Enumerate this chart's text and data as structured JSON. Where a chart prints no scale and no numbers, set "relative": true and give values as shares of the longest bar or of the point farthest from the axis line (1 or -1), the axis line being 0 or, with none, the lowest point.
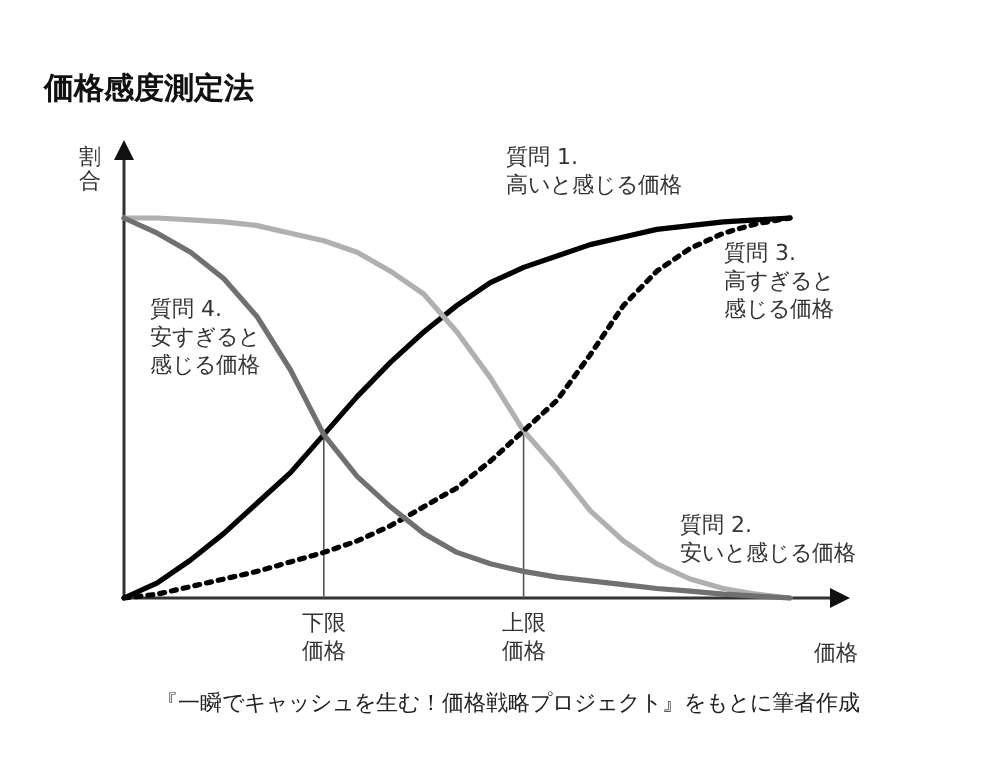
{
  "chart_data": {
    "type": "line",
    "relative": true,
    "title": "価格感度測定法",
    "xlabel": "価格",
    "ylabel": "割合",
    "categories": [
      null,
      null,
      null,
      null,
      null,
      null,
      "下限価格",
      null,
      null,
      null,
      null,
      null,
      "上限価格",
      null,
      null,
      null,
      null,
      null,
      null,
      null,
      null
    ],
    "series": [
      {
        "name": "質問 1.\n高いと感じる価格",
        "color": "#000000",
        "line_style": "solid",
        "values": [
          0,
          0.04,
          0.1,
          0.17,
          0.25,
          0.33,
          0.43,
          0.53,
          0.62,
          0.7,
          0.77,
          0.83,
          0.87,
          0.9,
          0.93,
          0.95,
          0.97,
          0.98,
          0.99,
          0.995,
          1
        ]
      },
      {
        "name": "質問 2.\n安いと感じる価格",
        "color": "#b0b0b0",
        "line_style": "solid",
        "values": [
          1,
          1,
          0.995,
          0.99,
          0.98,
          0.96,
          0.94,
          0.91,
          0.86,
          0.8,
          0.7,
          0.58,
          0.44,
          0.34,
          0.23,
          0.15,
          0.09,
          0.05,
          0.025,
          0.01,
          0
        ]
      },
      {
        "name": "質問 3.\n高すぎると感じる価格",
        "color": "#000000",
        "line_style": "dotted",
        "values": [
          0,
          0.01,
          0.03,
          0.05,
          0.07,
          0.095,
          0.12,
          0.15,
          0.19,
          0.24,
          0.29,
          0.36,
          0.44,
          0.52,
          0.64,
          0.77,
          0.86,
          0.92,
          0.96,
          0.985,
          1
        ]
      },
      {
        "name": "質問 4.\n安すぎると感じる価格",
        "color": "#707070",
        "line_style": "solid",
        "values": [
          1,
          0.96,
          0.91,
          0.84,
          0.74,
          0.6,
          0.43,
          0.32,
          0.24,
          0.17,
          0.12,
          0.09,
          0.07,
          0.055,
          0.045,
          0.035,
          0.025,
          0.018,
          0.01,
          0.005,
          0
        ]
      }
    ],
    "ref_lines": [
      {
        "axis": "x",
        "value": "下限価格",
        "color": "#555555"
      },
      {
        "axis": "x",
        "value": "上限価格",
        "color": "#555555"
      }
    ],
    "annotations": [
      "『一瞬でキャッシュを生む！価格戦略プロジェクト』をもとに筆者作成"
    ]
  }
}
